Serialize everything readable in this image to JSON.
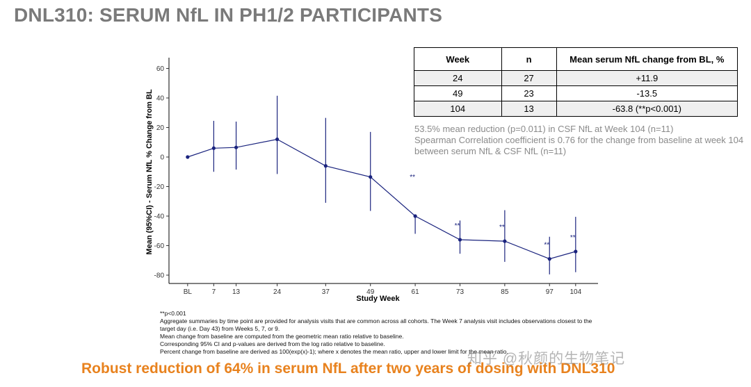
{
  "title": "DNL310: SERUM NfL IN PH1/2 PARTICIPANTS",
  "chart_data": {
    "type": "line",
    "xlabel": "Study Week",
    "ylabel": "Mean (95%CI) - Serum NfL % Change from BL",
    "ylim": [
      -88,
      68
    ],
    "yticks": [
      60,
      40,
      20,
      0,
      -20,
      -40,
      -60,
      -80
    ],
    "categories": [
      "BL",
      "7",
      "13",
      "24",
      "37",
      "49",
      "61",
      "73",
      "85",
      "97",
      "104"
    ],
    "x": [
      0,
      7,
      13,
      24,
      37,
      49,
      61,
      73,
      85,
      97,
      104
    ],
    "values": [
      0,
      6,
      6.5,
      12,
      -6,
      -13.5,
      -40,
      -56,
      -57,
      -69,
      -64
    ],
    "lower": [
      null,
      -10,
      -8.5,
      -11.5,
      -31,
      -36.5,
      -52,
      -65.5,
      -71,
      -79.5,
      -78
    ],
    "upper": [
      null,
      24.5,
      24,
      41.5,
      26.5,
      17,
      null,
      -43,
      -36,
      -54,
      -40.5
    ],
    "significance": [
      "",
      "",
      "",
      "",
      "",
      "",
      "**",
      "**",
      "**",
      "**",
      "**"
    ],
    "color": "#1a237e"
  },
  "table": {
    "headers": [
      "Week",
      "n",
      "Mean serum NfL change from BL, %"
    ],
    "rows": [
      [
        "24",
        "27",
        "+11.9"
      ],
      [
        "49",
        "23",
        "-13.5"
      ],
      [
        "104",
        "13",
        "-63.8 (**p<0.001)"
      ]
    ]
  },
  "notes": [
    "53.5% mean reduction (p=0.011) in CSF NfL at Week 104 (n=11)",
    "Spearman Correlation coefficient is 0.76 for the change from baseline at week 104 between serum NfL & CSF NfL (n=11)"
  ],
  "footnotes": [
    "**p<0.001",
    "Aggregate summaries by time point are provided for analysis visits that are common across all cohorts. The Week 7 analysis visit includes observations closest to the target day (i.e. Day 43) from Weeks 5, 7, or 9.",
    "Mean change from baseline are computed from the geometric mean ratio relative to baseline.",
    "Corresponding 95% CI and p-values are derived from the log ratio relative to baseline.",
    "Percent change from baseline are derived as 100(exp(x)-1); where x denotes the mean ratio, upper and lower limit for the mean ratio."
  ],
  "conclusion": "Robust reduction of 64% in serum NfL after two years of dosing with DNL310",
  "watermark": "知乎 @秋颜的生物笔记"
}
